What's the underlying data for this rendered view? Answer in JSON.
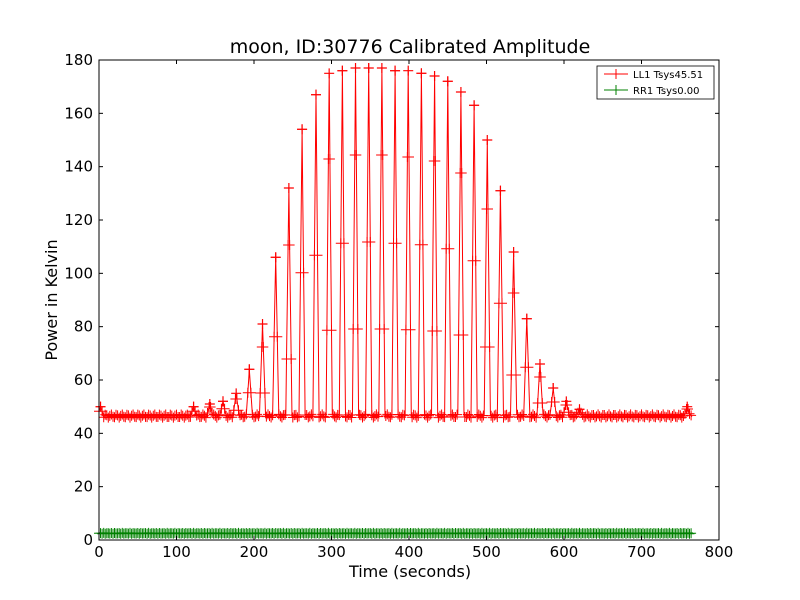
{
  "chart_data": {
    "type": "line",
    "title": "moon, ID:30776 Calibrated Amplitude",
    "xlabel": "Time (seconds)",
    "ylabel": "Power in Kelvin",
    "xlim": [
      0,
      800
    ],
    "ylim": [
      0,
      180
    ],
    "xticks": [
      0,
      100,
      200,
      300,
      400,
      500,
      600,
      700,
      800
    ],
    "yticks": [
      0,
      20,
      40,
      60,
      80,
      100,
      120,
      140,
      160,
      180
    ],
    "grid": false,
    "legend_position": "top-right",
    "series": [
      {
        "name": "LL1 Tsys45.51",
        "color": "#ff0000",
        "marker": "+",
        "baseline": 46.5,
        "sweep_period_seconds": 16.5,
        "x_range": [
          0,
          765
        ],
        "peaks": [
          {
            "x": 2,
            "y": 50
          },
          {
            "x": 122,
            "y": 50
          },
          {
            "x": 143,
            "y": 51
          },
          {
            "x": 160,
            "y": 52
          },
          {
            "x": 177,
            "y": 55
          },
          {
            "x": 194,
            "y": 64
          },
          {
            "x": 211,
            "y": 81
          },
          {
            "x": 228,
            "y": 106
          },
          {
            "x": 245,
            "y": 132
          },
          {
            "x": 262,
            "y": 154
          },
          {
            "x": 280,
            "y": 167
          },
          {
            "x": 297,
            "y": 175
          },
          {
            "x": 314,
            "y": 176
          },
          {
            "x": 331,
            "y": 177
          },
          {
            "x": 348,
            "y": 177
          },
          {
            "x": 365,
            "y": 177
          },
          {
            "x": 382,
            "y": 176
          },
          {
            "x": 399,
            "y": 176
          },
          {
            "x": 416,
            "y": 175
          },
          {
            "x": 433,
            "y": 174
          },
          {
            "x": 450,
            "y": 172
          },
          {
            "x": 467,
            "y": 168
          },
          {
            "x": 484,
            "y": 163
          },
          {
            "x": 501,
            "y": 150
          },
          {
            "x": 518,
            "y": 131
          },
          {
            "x": 535,
            "y": 108
          },
          {
            "x": 552,
            "y": 83
          },
          {
            "x": 569,
            "y": 66
          },
          {
            "x": 586,
            "y": 57
          },
          {
            "x": 603,
            "y": 52
          },
          {
            "x": 620,
            "y": 49
          },
          {
            "x": 759,
            "y": 50
          }
        ]
      },
      {
        "name": "RR1 Tsys0.00",
        "color": "#008000",
        "marker": "+",
        "baseline": 2.5,
        "x_range": [
          0,
          765
        ],
        "values": [
          [
            0,
            2.5
          ],
          [
            100,
            2.6
          ],
          [
            200,
            2.5
          ],
          [
            300,
            2.6
          ],
          [
            400,
            2.5
          ],
          [
            500,
            2.5
          ],
          [
            600,
            2.6
          ],
          [
            700,
            2.5
          ],
          [
            765,
            2.5
          ]
        ]
      }
    ]
  }
}
